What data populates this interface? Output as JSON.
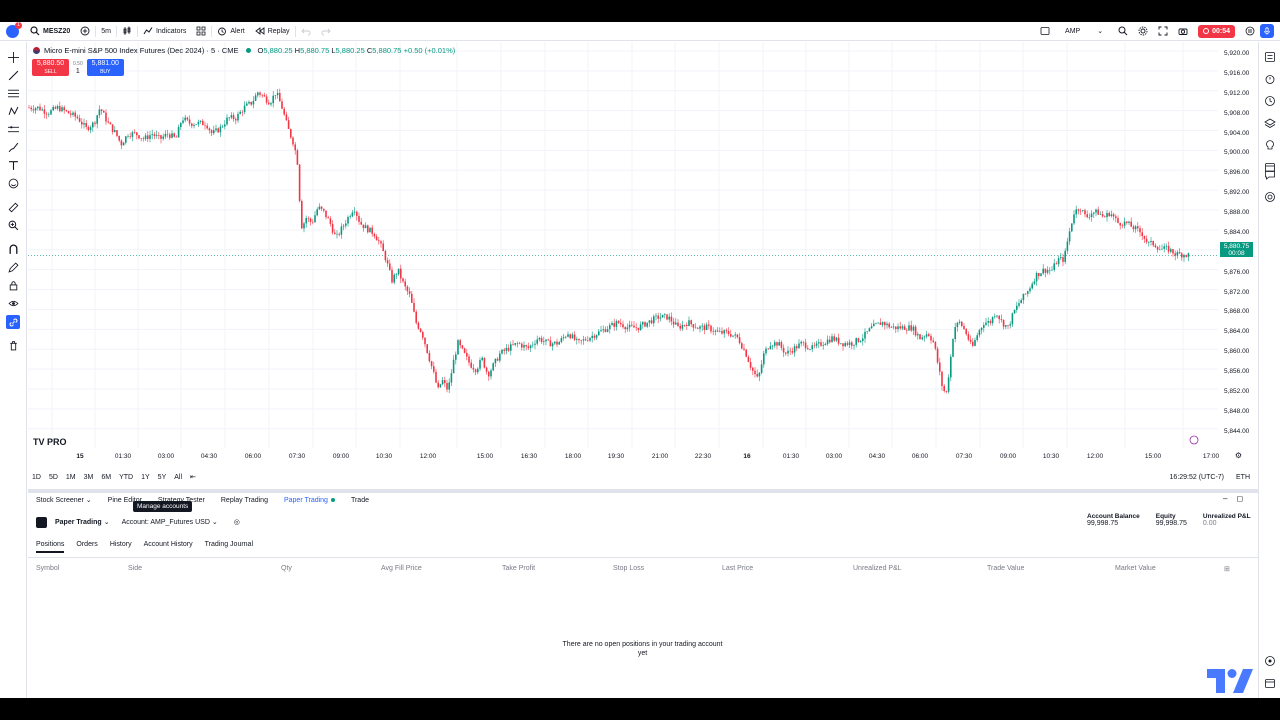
{
  "topbar": {
    "symbol": "MESZ20",
    "interval": "5m",
    "indicators_label": "Indicators",
    "alert_label": "Alert",
    "replay_label": "Replay",
    "broker_label": "AMP",
    "timer": "00:54",
    "notification_count": "1"
  },
  "legend": {
    "title": "Micro E-mini S&P 500 Index Futures (Dec 2024) · 5 · CME",
    "open_label": "O",
    "open": "5,880.25",
    "high_label": "H",
    "high": "5,880.75",
    "low_label": "L",
    "low": "5,880.25",
    "close_label": "C",
    "close": "5,880.75",
    "change": "+0.50 (+0.01%)"
  },
  "trade_buttons": {
    "sell_price": "5,880.50",
    "sell_label": "SELL",
    "spread": "0.50",
    "qty": "1",
    "buy_price": "5,881.00",
    "buy_label": "BUY"
  },
  "watermark": "TV PRO",
  "price_axis": {
    "ticks": [
      "5,920.00",
      "5,916.00",
      "5,912.00",
      "5,908.00",
      "5,904.00",
      "5,900.00",
      "5,896.00",
      "5,892.00",
      "5,888.00",
      "5,884.00",
      "5,880.00",
      "5,876.00",
      "5,872.00",
      "5,868.00",
      "5,864.00",
      "5,860.00",
      "5,856.00",
      "5,852.00",
      "5,848.00",
      "5,844.00"
    ],
    "last_price": "5,880.75",
    "countdown": "00:08"
  },
  "time_axis": {
    "ticks": [
      "15",
      "01:30",
      "03:00",
      "04:30",
      "06:00",
      "07:30",
      "09:00",
      "10:30",
      "12:00",
      "15:00",
      "16:30",
      "18:00",
      "19:30",
      "21:00",
      "22:30",
      "16",
      "01:30",
      "03:00",
      "04:30",
      "06:00",
      "07:30",
      "09:00",
      "10:30",
      "12:00",
      "15:00",
      "17:00"
    ]
  },
  "range_bar": {
    "ranges": [
      "1D",
      "5D",
      "1M",
      "3M",
      "6M",
      "YTD",
      "1Y",
      "5Y",
      "All"
    ],
    "clock": "16:29:52 (UTC-7)",
    "session": "ETH"
  },
  "panel_tabs": [
    "Stock Screener",
    "Pine Editor",
    "Strategy Tester",
    "Replay Trading",
    "Paper Trading",
    "Trade"
  ],
  "tooltip": "Manage accounts",
  "account": {
    "broker": "Paper Trading",
    "account_label": "Account: AMP_Futures USD",
    "balance_label": "Account Balance",
    "balance": "99,998.75",
    "equity_label": "Equity",
    "equity": "99,998.75",
    "unrealized_label": "Unrealized P&L",
    "unrealized": "0.00"
  },
  "sub_tabs": [
    "Positions",
    "Orders",
    "History",
    "Account History",
    "Trading Journal"
  ],
  "columns": [
    "Symbol",
    "Side",
    "Qty",
    "Avg Fill Price",
    "Take Profit",
    "Stop Loss",
    "Last Price",
    "Unrealized P&L",
    "Trade Value",
    "Market Value"
  ],
  "empty_message": "There are no open positions in your trading account yet",
  "colors": {
    "up": "#089981",
    "down": "#f23645",
    "accent": "#2962ff"
  },
  "chart_data": {
    "type": "candlestick",
    "price_range": [
      5843,
      5921
    ],
    "path_points": [
      [
        0,
        5909
      ],
      [
        10,
        5909
      ],
      [
        20,
        5908
      ],
      [
        30,
        5909
      ],
      [
        40,
        5908
      ],
      [
        50,
        5907
      ],
      [
        58,
        5905
      ],
      [
        66,
        5906
      ],
      [
        72,
        5909
      ],
      [
        80,
        5906
      ],
      [
        88,
        5904
      ],
      [
        93,
        5902
      ],
      [
        100,
        5904
      ],
      [
        108,
        5904
      ],
      [
        116,
        5903
      ],
      [
        124,
        5904
      ],
      [
        132,
        5903
      ],
      [
        140,
        5904
      ],
      [
        148,
        5903
      ],
      [
        154,
        5907
      ],
      [
        162,
        5906
      ],
      [
        170,
        5906
      ],
      [
        178,
        5906
      ],
      [
        184,
        5904
      ],
      [
        192,
        5905
      ],
      [
        200,
        5907
      ],
      [
        208,
        5907
      ],
      [
        216,
        5909
      ],
      [
        224,
        5910
      ],
      [
        230,
        5912
      ],
      [
        236,
        5911
      ],
      [
        242,
        5910
      ],
      [
        248,
        5912
      ],
      [
        254,
        5909
      ],
      [
        260,
        5905
      ],
      [
        266,
        5902
      ],
      [
        270,
        5898
      ],
      [
        272,
        5890
      ],
      [
        274,
        5886
      ],
      [
        278,
        5888
      ],
      [
        284,
        5887
      ],
      [
        290,
        5890
      ],
      [
        296,
        5889
      ],
      [
        302,
        5887
      ],
      [
        308,
        5884
      ],
      [
        314,
        5886
      ],
      [
        320,
        5888
      ],
      [
        326,
        5890
      ],
      [
        332,
        5887
      ],
      [
        338,
        5886
      ],
      [
        346,
        5885
      ],
      [
        352,
        5883
      ],
      [
        358,
        5880
      ],
      [
        364,
        5876
      ],
      [
        370,
        5878
      ],
      [
        376,
        5875
      ],
      [
        382,
        5873
      ],
      [
        388,
        5868
      ],
      [
        394,
        5866
      ],
      [
        400,
        5862
      ],
      [
        406,
        5858
      ],
      [
        410,
        5855
      ],
      [
        414,
        5857
      ],
      [
        420,
        5855
      ],
      [
        426,
        5861
      ],
      [
        430,
        5864
      ],
      [
        436,
        5862
      ],
      [
        442,
        5860
      ],
      [
        448,
        5859
      ],
      [
        454,
        5861
      ],
      [
        460,
        5858
      ],
      [
        466,
        5860
      ],
      [
        472,
        5862
      ],
      [
        480,
        5863
      ],
      [
        490,
        5864
      ],
      [
        500,
        5863
      ],
      [
        510,
        5865
      ],
      [
        520,
        5864
      ],
      [
        530,
        5864
      ],
      [
        540,
        5866
      ],
      [
        550,
        5864
      ],
      [
        560,
        5865
      ],
      [
        570,
        5866
      ],
      [
        580,
        5867
      ],
      [
        590,
        5868
      ],
      [
        600,
        5867
      ],
      [
        610,
        5867
      ],
      [
        620,
        5868
      ],
      [
        630,
        5869
      ],
      [
        640,
        5869
      ],
      [
        650,
        5867
      ],
      [
        660,
        5868
      ],
      [
        670,
        5867
      ],
      [
        680,
        5867
      ],
      [
        690,
        5866
      ],
      [
        700,
        5866
      ],
      [
        710,
        5865
      ],
      [
        718,
        5862
      ],
      [
        724,
        5859
      ],
      [
        730,
        5857
      ],
      [
        736,
        5862
      ],
      [
        742,
        5864
      ],
      [
        750,
        5864
      ],
      [
        758,
        5862
      ],
      [
        766,
        5863
      ],
      [
        774,
        5864
      ],
      [
        784,
        5863
      ],
      [
        794,
        5864
      ],
      [
        804,
        5865
      ],
      [
        814,
        5864
      ],
      [
        824,
        5864
      ],
      [
        834,
        5865
      ],
      [
        844,
        5867
      ],
      [
        854,
        5868
      ],
      [
        864,
        5867
      ],
      [
        874,
        5867
      ],
      [
        884,
        5867
      ],
      [
        892,
        5865
      ],
      [
        900,
        5866
      ],
      [
        906,
        5864
      ],
      [
        910,
        5860
      ],
      [
        914,
        5856
      ],
      [
        918,
        5854
      ],
      [
        922,
        5860
      ],
      [
        926,
        5867
      ],
      [
        932,
        5868
      ],
      [
        938,
        5866
      ],
      [
        944,
        5863
      ],
      [
        950,
        5866
      ],
      [
        956,
        5868
      ],
      [
        962,
        5868
      ],
      [
        968,
        5870
      ],
      [
        974,
        5868
      ],
      [
        980,
        5867
      ],
      [
        986,
        5870
      ],
      [
        992,
        5872
      ],
      [
        1000,
        5874
      ],
      [
        1008,
        5877
      ],
      [
        1016,
        5878
      ],
      [
        1024,
        5878
      ],
      [
        1030,
        5880
      ],
      [
        1036,
        5880
      ],
      [
        1040,
        5884
      ],
      [
        1046,
        5889
      ],
      [
        1052,
        5890
      ],
      [
        1058,
        5888
      ],
      [
        1064,
        5889
      ],
      [
        1070,
        5889
      ],
      [
        1076,
        5888
      ],
      [
        1082,
        5889
      ],
      [
        1090,
        5887
      ],
      [
        1098,
        5887
      ],
      [
        1106,
        5886
      ],
      [
        1114,
        5885
      ],
      [
        1120,
        5883
      ],
      [
        1126,
        5883
      ],
      [
        1132,
        5882
      ],
      [
        1140,
        5882
      ],
      [
        1148,
        5881
      ],
      [
        1156,
        5881
      ],
      [
        1162,
        5880.75
      ]
    ]
  }
}
